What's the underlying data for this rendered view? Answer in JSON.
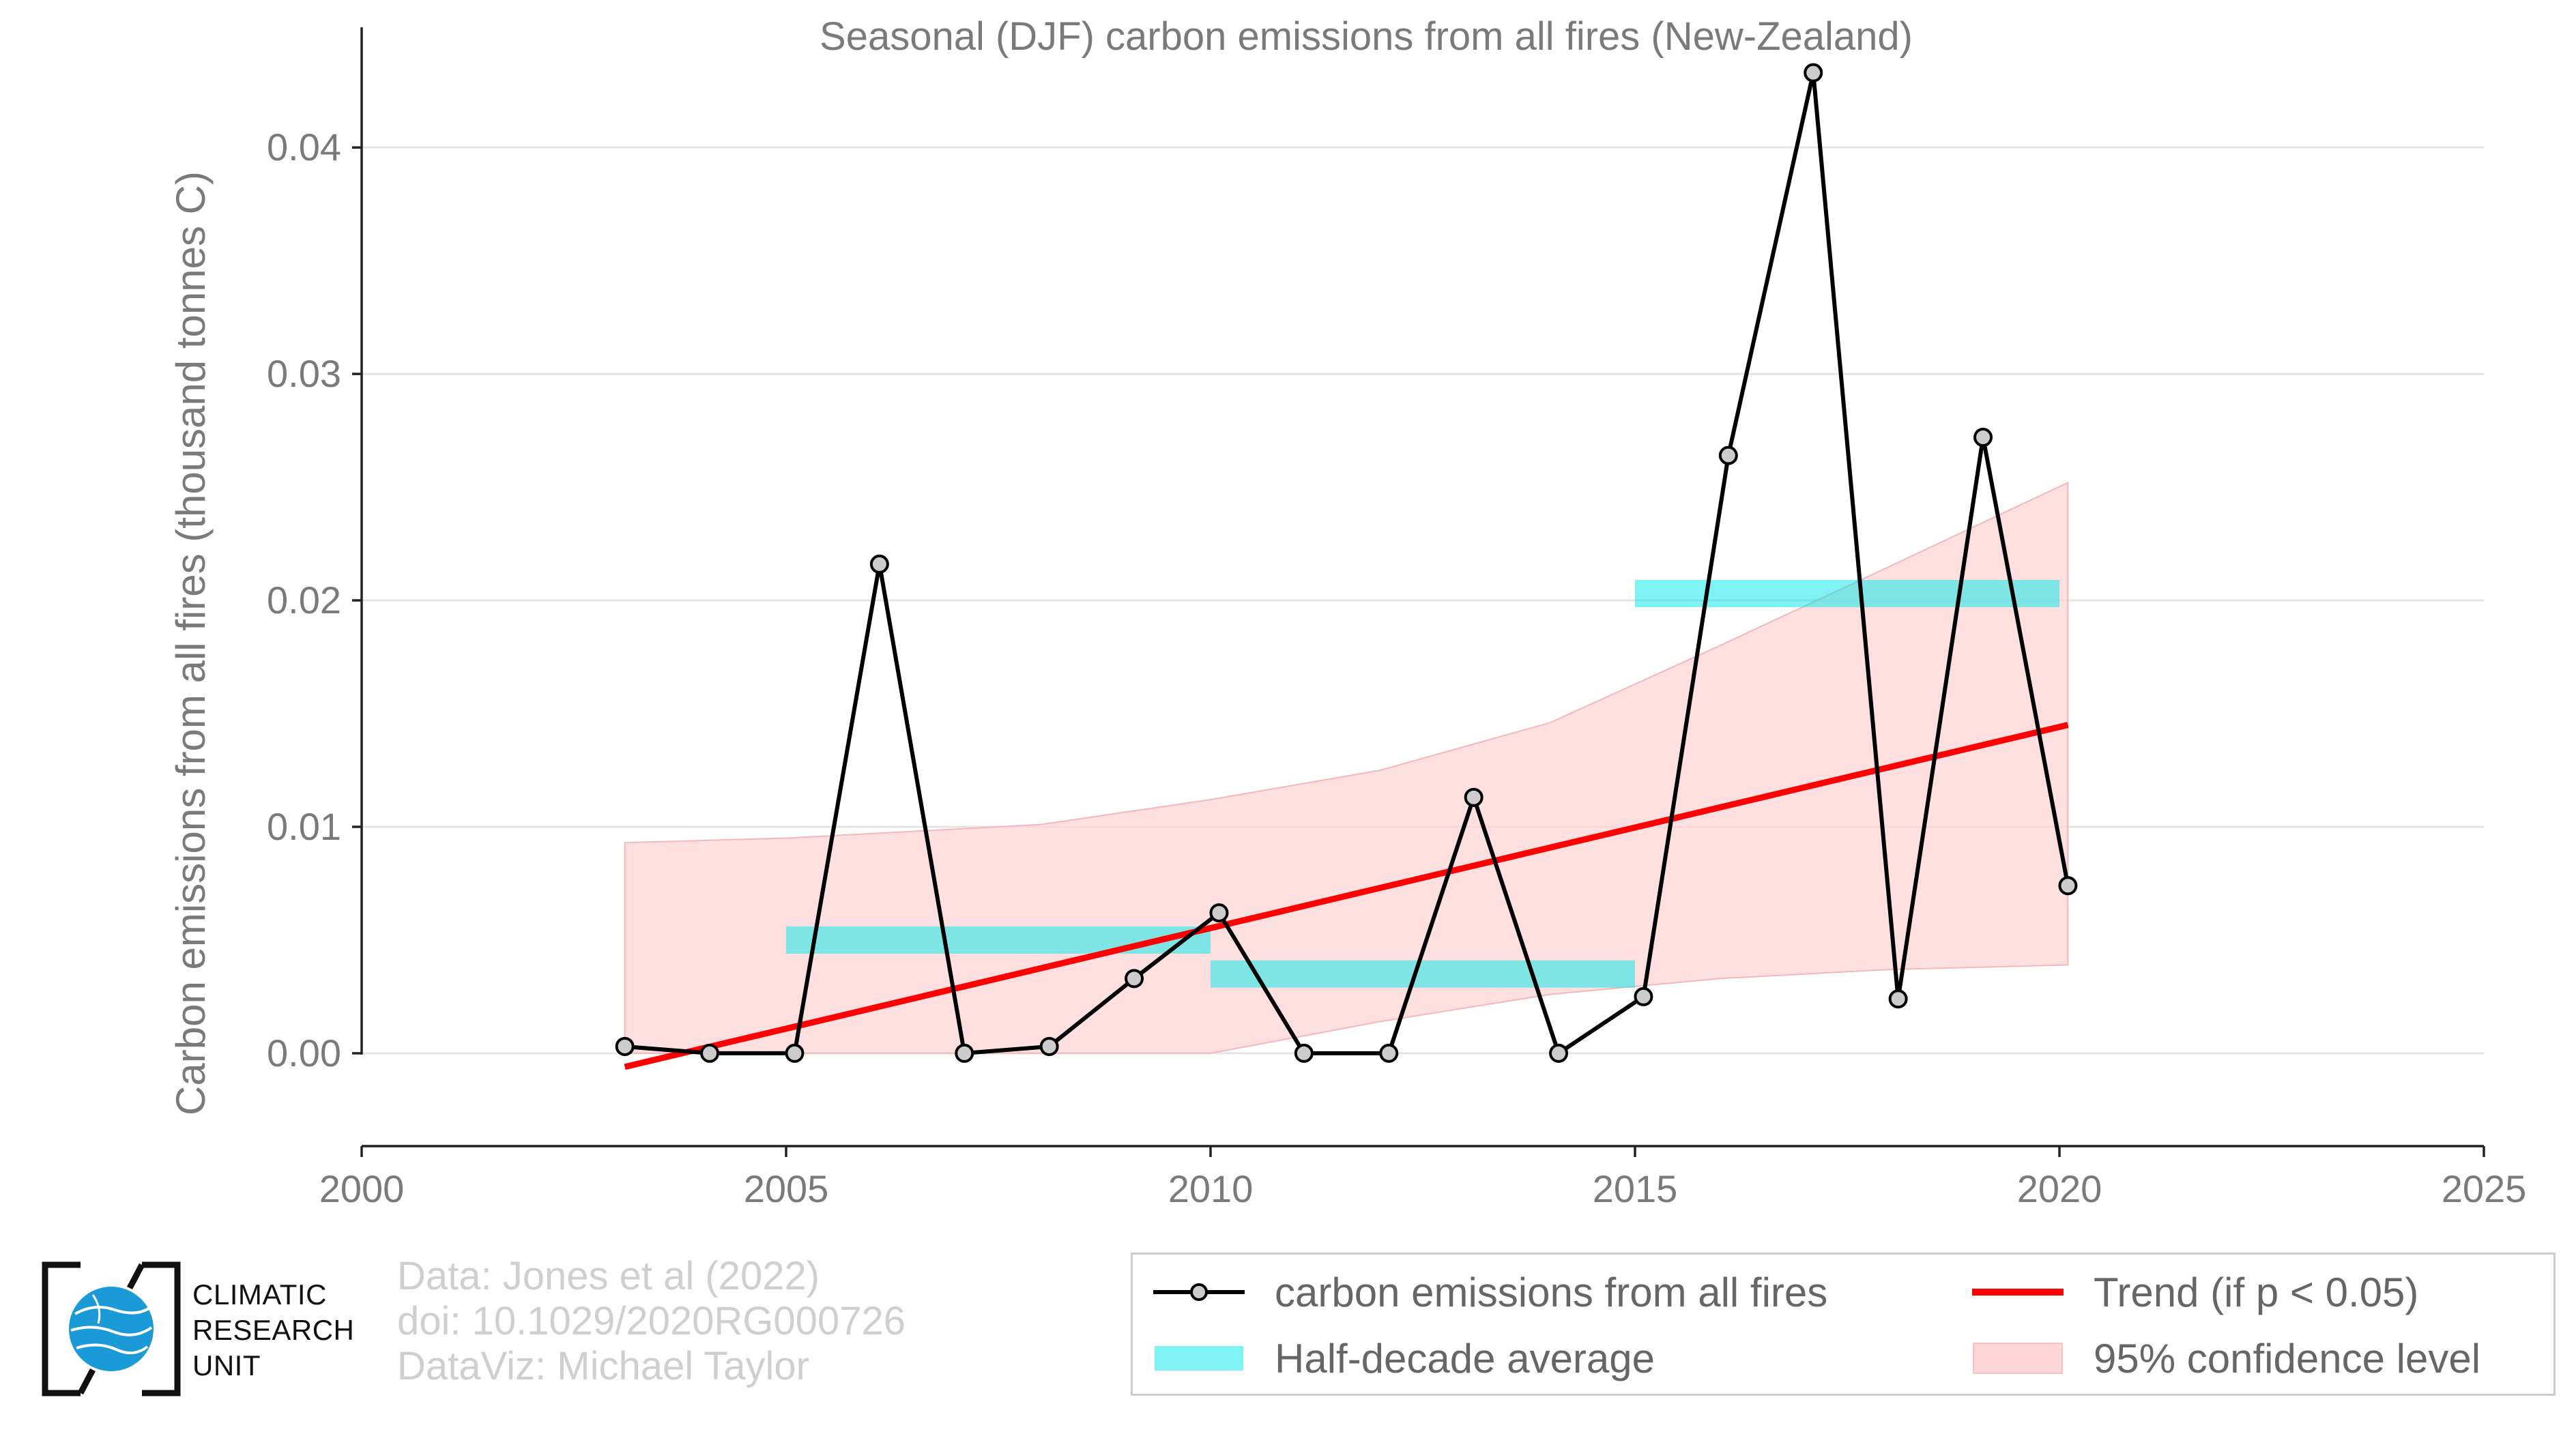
{
  "chart_data": {
    "type": "line",
    "title": "Seasonal (DJF) carbon emissions from all fires (New-Zealand)",
    "xlabel": "",
    "ylabel": "Carbon emissions from all fires (thousand tonnes C)",
    "xlim": [
      2000,
      2025
    ],
    "ylim": [
      -0.0041,
      0.0435
    ],
    "x_ticks": [
      "2000",
      "2005",
      "2010",
      "2015",
      "2020",
      "2025"
    ],
    "y_ticks": [
      "0.00",
      "0.01",
      "0.02",
      "0.03",
      "0.04"
    ],
    "grid": true,
    "series": [
      {
        "name": "carbon emissions from all fires",
        "color": "#000000",
        "points": [
          [
            2003.1,
            0.0003
          ],
          [
            2004.1,
            0.0
          ],
          [
            2005.1,
            0.0
          ],
          [
            2006.1,
            0.0216
          ],
          [
            2007.1,
            0.0
          ],
          [
            2008.1,
            0.0003
          ],
          [
            2009.1,
            0.0033
          ],
          [
            2010.1,
            0.0062
          ],
          [
            2011.1,
            0.0
          ],
          [
            2012.1,
            0.0
          ],
          [
            2013.1,
            0.0113
          ],
          [
            2014.1,
            0.0
          ],
          [
            2015.1,
            0.0025
          ],
          [
            2016.1,
            0.0264
          ],
          [
            2017.1,
            0.0433
          ],
          [
            2018.1,
            0.0024
          ],
          [
            2019.1,
            0.0272
          ],
          [
            2020.1,
            0.0074
          ]
        ]
      }
    ],
    "half_decade_average": {
      "name": "Half-decade average",
      "color": "#00e8e8",
      "segments": [
        {
          "x0": 2005,
          "x1": 2010,
          "y": 0.005
        },
        {
          "x0": 2010,
          "x1": 2015,
          "y": 0.0035
        },
        {
          "x0": 2015,
          "x1": 2020,
          "y": 0.0203
        }
      ]
    },
    "trend": {
      "name": "Trend (if p < 0.05)",
      "color": "#ff0000",
      "x0": 2003.1,
      "y0": -0.0006,
      "x1": 2020.1,
      "y1": 0.0145
    },
    "confidence_band": {
      "name": "95% confidence level",
      "color": "#ffd6d6",
      "x": [
        2003.1,
        2005,
        2008,
        2010,
        2012,
        2014,
        2016,
        2018,
        2020.1
      ],
      "upper": [
        0.0093,
        0.0095,
        0.0101,
        0.0112,
        0.0125,
        0.0146,
        0.018,
        0.0215,
        0.0252
      ],
      "lower": [
        0.0,
        0.0,
        0.0,
        0.0,
        0.0014,
        0.0026,
        0.0033,
        0.0037,
        0.0039
      ]
    },
    "legend_position": "bottom-right"
  },
  "footer": {
    "credits": [
      "Data: Jones et al (2022)",
      "doi: 10.1029/2020RG000726",
      "DataViz: Michael Taylor"
    ]
  },
  "logo": {
    "lines": [
      "CLIMATIC",
      "RESEARCH",
      "UNIT"
    ]
  }
}
